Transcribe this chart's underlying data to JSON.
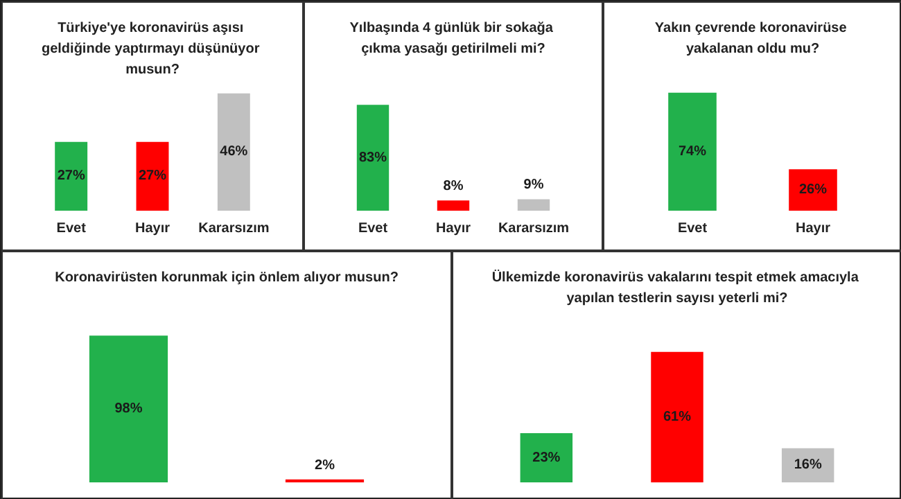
{
  "chart_data": [
    {
      "type": "bar",
      "title": "Türkiye'ye koronavirüs aşısı geldiğinde yaptırmayı düşünüyor musun?",
      "categories": [
        "Evet",
        "Hayır",
        "Kararsızım"
      ],
      "values": [
        27,
        27,
        46
      ],
      "colors": [
        "#22b14c",
        "#ff0000",
        "#c0c0c0"
      ],
      "value_labels": [
        "27%",
        "27%",
        "46%"
      ]
    },
    {
      "type": "bar",
      "title": "Yılbaşında 4 günlük bir sokağa çıkma yasağı getirilmeli mi?",
      "categories": [
        "Evet",
        "Hayır",
        "Kararsızım"
      ],
      "values": [
        83,
        8,
        9
      ],
      "colors": [
        "#22b14c",
        "#ff0000",
        "#c0c0c0"
      ],
      "value_labels": [
        "83%",
        "8%",
        "9%"
      ]
    },
    {
      "type": "bar",
      "title": "Yakın çevrende koronavirüse yakalanan oldu mu?",
      "categories": [
        "Evet",
        "Hayır"
      ],
      "values": [
        74,
        26
      ],
      "colors": [
        "#22b14c",
        "#ff0000"
      ],
      "value_labels": [
        "74%",
        "26%"
      ]
    },
    {
      "type": "bar",
      "title": "Koronavirüsten korunmak için önlem alıyor musun?",
      "categories": [
        null,
        null
      ],
      "values": [
        98,
        2
      ],
      "colors": [
        "#22b14c",
        "#ff0000"
      ],
      "value_labels": [
        "98%",
        "2%"
      ]
    },
    {
      "type": "bar",
      "title": "Ülkemizde koronavirüs vakalarını tespit etmek amacıyla yapılan testlerin sayısı yeterli mi?",
      "categories": [
        null,
        null,
        null
      ],
      "values": [
        23,
        61,
        16
      ],
      "colors": [
        "#22b14c",
        "#ff0000",
        "#c0c0c0"
      ],
      "value_labels": [
        "23%",
        "61%",
        "16%"
      ]
    }
  ]
}
